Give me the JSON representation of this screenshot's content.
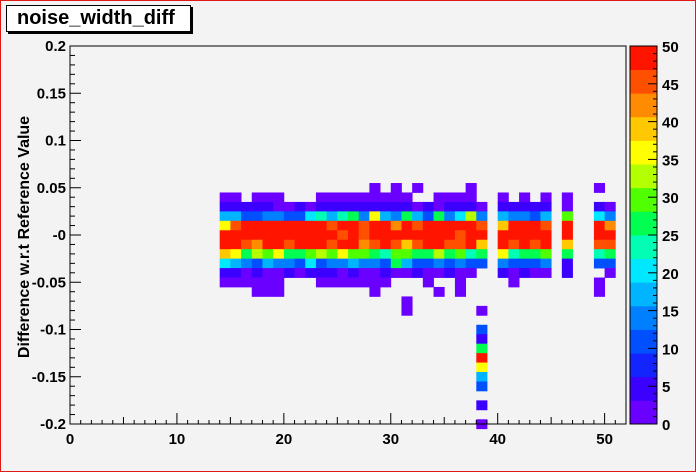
{
  "title": "noise_width_diff",
  "chart_data": {
    "type": "heatmap",
    "title": "noise_width_diff",
    "xlabel": "",
    "ylabel": "Difference w.r.t Reference Value",
    "xlim": [
      0,
      52
    ],
    "ylim": [
      -0.2,
      0.2
    ],
    "x_ticks": [
      "0",
      "10",
      "20",
      "30",
      "40",
      "50"
    ],
    "y_ticks": [
      "-0.2",
      "-0.15",
      "-0.1",
      "-0.05",
      "-0",
      "0.05",
      "0.1",
      "0.15",
      "0.2"
    ],
    "z_range": [
      0,
      50
    ],
    "colorbar_ticks": [
      "0",
      "5",
      "10",
      "15",
      "20",
      "25",
      "30",
      "35",
      "40",
      "45",
      "50"
    ],
    "grid": false,
    "x_bin_width": 1,
    "y_bin_width": 0.01,
    "colorbar_palette": [
      "#6a00ff",
      "#3c00ff",
      "#1424ff",
      "#0050ff",
      "#0080ff",
      "#00b4ff",
      "#00e8ff",
      "#00ffb4",
      "#00ff50",
      "#50ff00",
      "#b4ff00",
      "#ffff00",
      "#ffc800",
      "#ff8c00",
      "#ff5000",
      "#ff1400"
    ],
    "columns": [
      {
        "x": 14.5,
        "cells": {
          "0.04": 3,
          "0.03": 6,
          "0.02": 18,
          "0.01": 35,
          "0.00": 50,
          "-0.01": 48,
          "-0.02": 38,
          "-0.03": 20,
          "-0.04": 6,
          "-0.05": 3
        }
      },
      {
        "x": 15.5,
        "cells": {
          "0.04": 3,
          "0.03": 6,
          "0.02": 18,
          "0.01": 45,
          "0.00": 50,
          "-0.01": 48,
          "-0.02": 35,
          "-0.03": 18,
          "-0.04": 6,
          "-0.05": 3
        }
      },
      {
        "x": 16.5,
        "cells": {
          "0.03": 6,
          "0.02": 12,
          "0.01": 50,
          "0.00": 48,
          "-0.01": 45,
          "-0.02": 25,
          "-0.03": 15,
          "-0.04": 3,
          "-0.05": 3
        }
      },
      {
        "x": 17.5,
        "cells": {
          "0.04": 3,
          "0.03": 6,
          "0.02": 12,
          "0.01": 50,
          "0.00": 50,
          "-0.01": 42,
          "-0.02": 32,
          "-0.03": 12,
          "-0.04": 6,
          "-0.05": 3,
          "-0.06": 3
        }
      },
      {
        "x": 18.5,
        "cells": {
          "0.04": 3,
          "0.03": 6,
          "0.02": 14,
          "0.01": 50,
          "0.00": 50,
          "-0.01": 48,
          "-0.02": 30,
          "-0.03": 18,
          "-0.04": 3,
          "-0.05": 3,
          "-0.06": 3
        }
      },
      {
        "x": 19.5,
        "cells": {
          "0.04": 3,
          "0.03": 3,
          "0.02": 14,
          "0.01": 50,
          "0.00": 50,
          "-0.01": 48,
          "-0.02": 35,
          "-0.03": 15,
          "-0.04": 3,
          "-0.05": 3,
          "-0.06": 3
        }
      },
      {
        "x": 20.5,
        "cells": {
          "0.03": 3,
          "0.02": 10,
          "0.01": 50,
          "0.00": 50,
          "-0.01": 45,
          "-0.02": 25,
          "-0.03": 15,
          "-0.04": 6
        }
      },
      {
        "x": 21.5,
        "cells": {
          "0.03": 6,
          "0.02": 12,
          "0.01": 50,
          "0.00": 48,
          "-0.01": 50,
          "-0.02": 28,
          "-0.03": 12,
          "-0.04": 3
        }
      },
      {
        "x": 22.5,
        "cells": {
          "0.03": 3,
          "0.02": 20,
          "0.01": 50,
          "0.00": 50,
          "-0.01": 50,
          "-0.02": 30,
          "-0.03": 20,
          "-0.04": 6
        }
      },
      {
        "x": 23.5,
        "cells": {
          "0.04": 3,
          "0.03": 6,
          "0.02": 22,
          "0.01": 50,
          "0.00": 50,
          "-0.01": 48,
          "-0.02": 32,
          "-0.03": 12,
          "-0.04": 6,
          "-0.05": 3
        }
      },
      {
        "x": 24.5,
        "cells": {
          "0.04": 3,
          "0.03": 6,
          "0.02": 18,
          "0.01": 45,
          "0.00": 50,
          "-0.01": 45,
          "-0.02": 30,
          "-0.03": 15,
          "-0.04": 6,
          "-0.05": 3
        }
      },
      {
        "x": 25.5,
        "cells": {
          "0.04": 3,
          "0.03": 6,
          "0.02": 22,
          "0.01": 50,
          "0.00": 45,
          "-0.01": 50,
          "-0.02": 35,
          "-0.03": 15,
          "-0.04": 3,
          "-0.05": 3
        }
      },
      {
        "x": 26.5,
        "cells": {
          "0.04": 3,
          "0.03": 6,
          "0.02": 28,
          "0.01": 50,
          "0.00": 48,
          "-0.01": 50,
          "-0.02": 30,
          "-0.03": 18,
          "-0.04": 6,
          "-0.05": 3
        }
      },
      {
        "x": 27.5,
        "cells": {
          "0.04": 3,
          "0.03": 6,
          "0.02": 15,
          "0.01": 45,
          "0.00": 45,
          "-0.01": 42,
          "-0.02": 30,
          "-0.03": 15,
          "-0.04": 3,
          "-0.05": 3
        }
      },
      {
        "x": 28.5,
        "cells": {
          "0.05": 3,
          "0.04": 3,
          "0.03": 6,
          "0.02": 35,
          "0.01": 50,
          "0.00": 48,
          "-0.01": 45,
          "-0.02": 28,
          "-0.03": 15,
          "-0.04": 3,
          "-0.05": 3,
          "-0.06": 3
        }
      },
      {
        "x": 29.5,
        "cells": {
          "0.04": 3,
          "0.03": 6,
          "0.02": 18,
          "0.01": 48,
          "0.00": 50,
          "-0.01": 50,
          "-0.02": 22,
          "-0.03": 12,
          "-0.04": 6,
          "-0.05": 3
        }
      },
      {
        "x": 30.5,
        "cells": {
          "0.05": 3,
          "0.04": 3,
          "0.03": 6,
          "0.02": 14,
          "0.01": 42,
          "0.00": 50,
          "-0.01": 45,
          "-0.02": 30,
          "-0.03": 25,
          "-0.04": 3
        }
      },
      {
        "x": 31.5,
        "cells": {
          "0.04": 3,
          "0.03": 6,
          "0.02": 28,
          "0.01": 48,
          "0.00": 50,
          "-0.01": 40,
          "-0.02": 30,
          "-0.03": 18,
          "-0.04": 3,
          "-0.07": 3,
          "-0.08": 3
        }
      },
      {
        "x": 32.5,
        "cells": {
          "0.05": 3,
          "0.03": 3,
          "0.02": 18,
          "0.01": 45,
          "0.00": 50,
          "-0.01": 45,
          "-0.02": 28,
          "-0.03": 12,
          "-0.04": 6
        }
      },
      {
        "x": 33.5,
        "cells": {
          "0.03": 6,
          "0.02": 12,
          "0.01": 50,
          "0.00": 50,
          "-0.01": 48,
          "-0.02": 25,
          "-0.03": 12,
          "-0.04": 3,
          "-0.05": 3
        }
      },
      {
        "x": 34.5,
        "cells": {
          "0.04": 3,
          "0.03": 3,
          "0.02": 25,
          "0.01": 50,
          "0.00": 48,
          "-0.01": 48,
          "-0.02": 32,
          "-0.03": 15,
          "-0.04": 3,
          "-0.06": 3
        }
      },
      {
        "x": 35.5,
        "cells": {
          "0.04": 3,
          "0.03": 6,
          "0.02": 15,
          "0.01": 50,
          "0.00": 50,
          "-0.01": 45,
          "-0.02": 25,
          "-0.03": 12,
          "-0.04": 6
        }
      },
      {
        "x": 36.5,
        "cells": {
          "0.04": 3,
          "0.03": 6,
          "0.02": 20,
          "0.01": 50,
          "0.00": 45,
          "-0.01": 45,
          "-0.02": 30,
          "-0.03": 15,
          "-0.04": 3,
          "-0.05": 3,
          "-0.06": 3
        }
      },
      {
        "x": 37.5,
        "cells": {
          "0.05": 3,
          "0.04": 3,
          "0.03": 6,
          "0.02": 32,
          "0.01": 50,
          "0.00": 48,
          "-0.01": 50,
          "-0.02": 22,
          "-0.03": 12,
          "-0.04": 3
        }
      },
      {
        "x": 38.5,
        "cells": {
          "0.03": 3,
          "0.02": 15,
          "0.01": 45,
          "0.00": 50,
          "-0.01": 40,
          "-0.02": 25,
          "-0.03": 12,
          "-0.08": 3,
          "-0.10": 12,
          "-0.11": 5,
          "-0.12": 28,
          "-0.13": 48,
          "-0.14": 35,
          "-0.15": 18,
          "-0.16": 12,
          "-0.18": 6,
          "-0.20": 3
        }
      },
      {
        "x": 40.5,
        "cells": {
          "0.04": 3,
          "0.03": 6,
          "0.02": 18,
          "0.01": 38,
          "0.00": 50,
          "-0.01": 50,
          "-0.02": 35,
          "-0.03": 15,
          "-0.04": 6
        }
      },
      {
        "x": 41.5,
        "cells": {
          "0.03": 6,
          "0.02": 15,
          "0.01": 50,
          "0.00": 50,
          "-0.01": 45,
          "-0.02": 22,
          "-0.03": 12,
          "-0.04": 3,
          "-0.05": 3
        }
      },
      {
        "x": 42.5,
        "cells": {
          "0.04": 3,
          "0.03": 6,
          "0.02": 15,
          "0.01": 48,
          "0.00": 50,
          "-0.01": 50,
          "-0.02": 25,
          "-0.03": 10,
          "-0.04": 6
        }
      },
      {
        "x": 43.5,
        "cells": {
          "0.03": 6,
          "0.02": 12,
          "0.01": 50,
          "0.00": 50,
          "-0.01": 45,
          "-0.02": 28,
          "-0.03": 12,
          "-0.04": 3
        }
      },
      {
        "x": 44.5,
        "cells": {
          "0.04": 3,
          "0.03": 6,
          "0.02": 18,
          "0.01": 45,
          "0.00": 50,
          "-0.01": 48,
          "-0.02": 30,
          "-0.03": 15,
          "-0.04": 3
        }
      },
      {
        "x": 46.5,
        "cells": {
          "0.04": 3,
          "0.03": 3,
          "0.02": 30,
          "0.01": 48,
          "0.00": 50,
          "-0.01": 40,
          "-0.02": 28,
          "-0.03": 6,
          "-0.04": 6
        }
      },
      {
        "x": 49.5,
        "cells": {
          "0.05": 3,
          "0.03": 6,
          "0.02": 20,
          "0.01": 50,
          "0.00": 50,
          "-0.01": 45,
          "-0.02": 22,
          "-0.03": 12,
          "-0.05": 3,
          "-0.06": 3
        }
      },
      {
        "x": 50.5,
        "cells": {
          "0.03": 3,
          "0.02": 15,
          "0.01": 42,
          "0.00": 50,
          "-0.01": 45,
          "-0.02": 25,
          "-0.03": 12,
          "-0.04": 3
        }
      }
    ]
  }
}
